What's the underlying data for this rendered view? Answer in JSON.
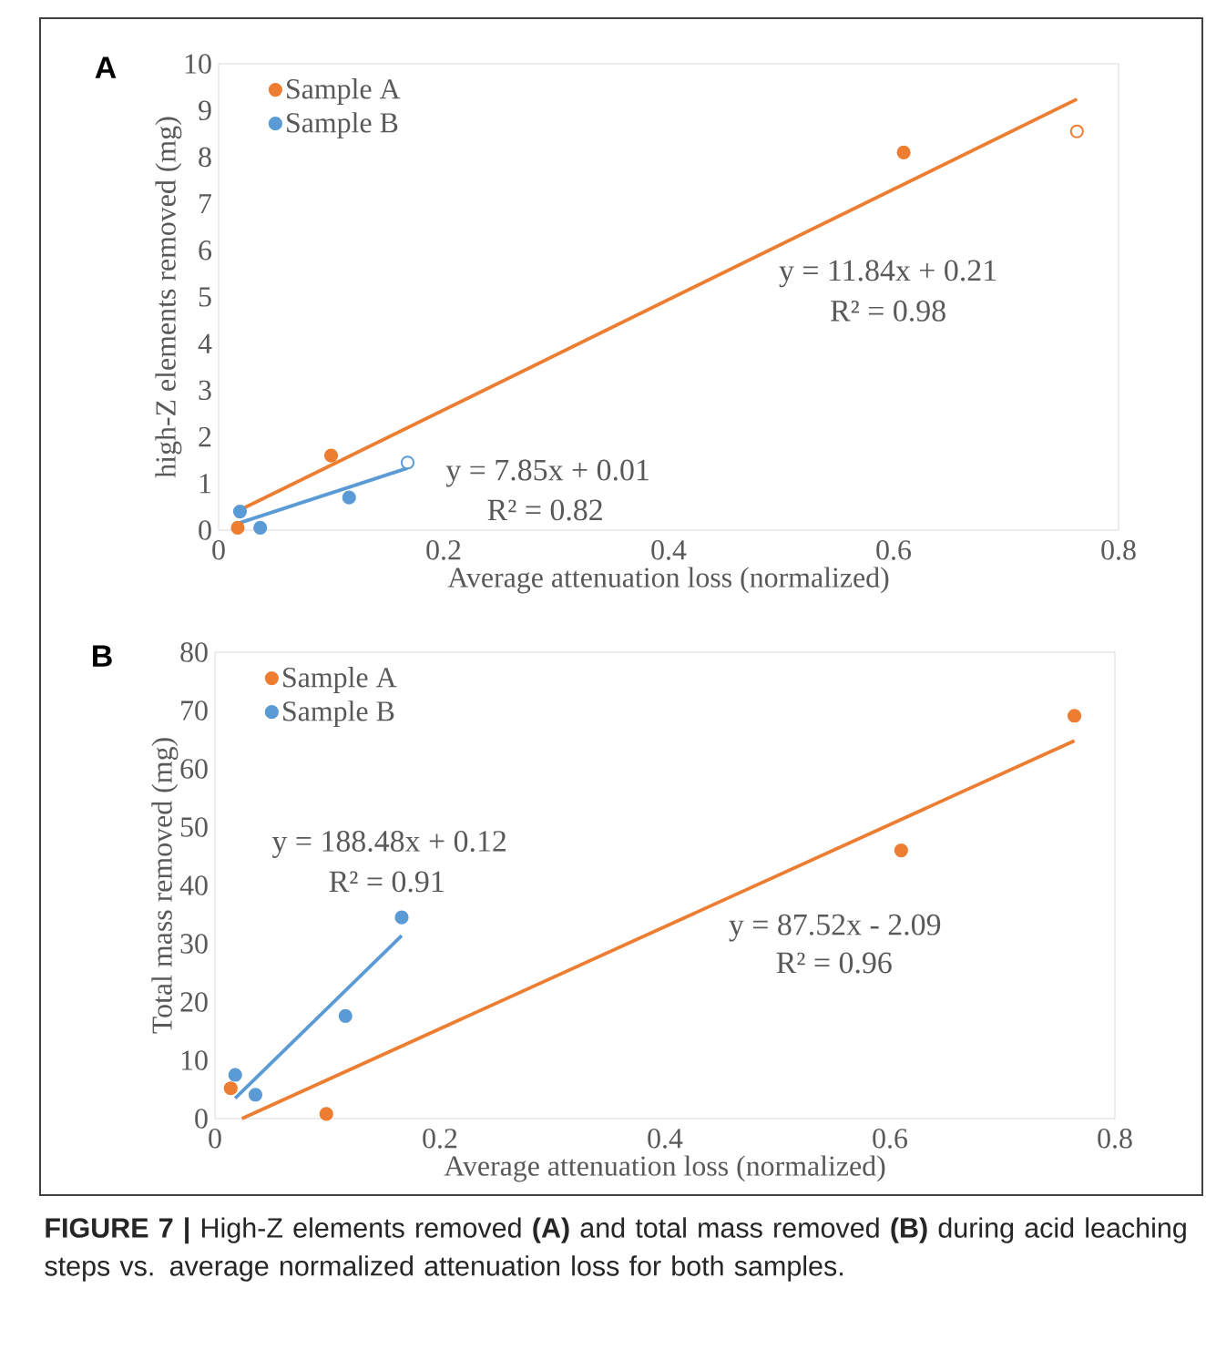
{
  "chart_data": [
    {
      "type": "scatter",
      "title": "A",
      "xlabel": "Average attenuation loss (normalized)",
      "ylabel": "high-Z  elements removed (mg)",
      "xlim": [
        0,
        0.8
      ],
      "ylim": [
        0,
        10
      ],
      "xticks": [
        0,
        0.2,
        0.4,
        0.6,
        0.8
      ],
      "yticks": [
        0,
        1,
        2,
        3,
        4,
        5,
        6,
        7,
        8,
        9,
        10
      ],
      "legend": "top left",
      "series": [
        {
          "name": "Sample A",
          "color": "#ed7d31",
          "marker": "circle",
          "x": [
            0.017,
            0.1,
            0.609
          ],
          "values": [
            0.05,
            1.6,
            8.1
          ]
        },
        {
          "name": "Sample B",
          "color": "#5b9bd5",
          "marker": "circle",
          "x": [
            0.019,
            0.037,
            0.116
          ],
          "values": [
            0.4,
            0.05,
            0.7
          ]
        },
        {
          "color": "#ed7d31",
          "marker": "circle",
          "x": [
            0.763
          ],
          "values": [
            8.55
          ]
        },
        {
          "color": "#5b9bd5",
          "marker": "circle",
          "x": [
            0.168
          ],
          "values": [
            1.45
          ]
        },
        {
          "type": "line",
          "color": "#ed7d31",
          "marker": "none",
          "x": [
            0.017,
            0.763
          ],
          "values": [
            0.41,
            9.24
          ]
        },
        {
          "type": "line",
          "color": "#5b9bd5",
          "marker": "none",
          "x": [
            0.019,
            0.168
          ],
          "values": [
            0.16,
            1.33
          ]
        }
      ],
      "annotations": [
        "y = 11.84x + 0.21",
        "R² = 0.98",
        "y = 7.85x + 0.01",
        "R² = 0.82"
      ]
    },
    {
      "type": "scatter",
      "title": "B",
      "xlabel": "Average attenuation loss (normalized)",
      "ylabel": "Total mass removed (mg)",
      "xlim": [
        0,
        0.8
      ],
      "ylim": [
        0,
        80
      ],
      "xticks": [
        0,
        0.2,
        0.4,
        0.6,
        0.8
      ],
      "yticks": [
        0,
        10,
        20,
        30,
        40,
        50,
        60,
        70,
        80
      ],
      "legend": "top left",
      "series": [
        {
          "name": "Sample A",
          "color": "#ed7d31",
          "marker": "circle",
          "x": [
            0.014,
            0.099,
            0.61,
            0.764
          ],
          "values": [
            5.2,
            0.8,
            46,
            69.1
          ]
        },
        {
          "name": "Sample B",
          "color": "#5b9bd5",
          "marker": "circle",
          "x": [
            0.018,
            0.036,
            0.116,
            0.166
          ],
          "values": [
            7.5,
            4.1,
            17.6,
            34.5
          ]
        },
        {
          "type": "line",
          "color": "#ed7d31",
          "marker": "none",
          "x": [
            0.024,
            0.764
          ],
          "values": [
            0.0,
            64.8
          ]
        },
        {
          "type": "line",
          "color": "#5b9bd5",
          "marker": "none",
          "x": [
            0.018,
            0.166
          ],
          "values": [
            3.5,
            31.4
          ]
        }
      ],
      "annotations": [
        "y = 188.48x + 0.12",
        "R² = 0.91",
        "y = 87.52x   - 2.09",
        "R² = 0.96",
        "**FIGURE 7 |** High-Z elements removed **(A)** and total mass removed **(B)** during acid leaching steps vs. average normalized attenuation loss for both samples."
      ]
    }
  ]
}
